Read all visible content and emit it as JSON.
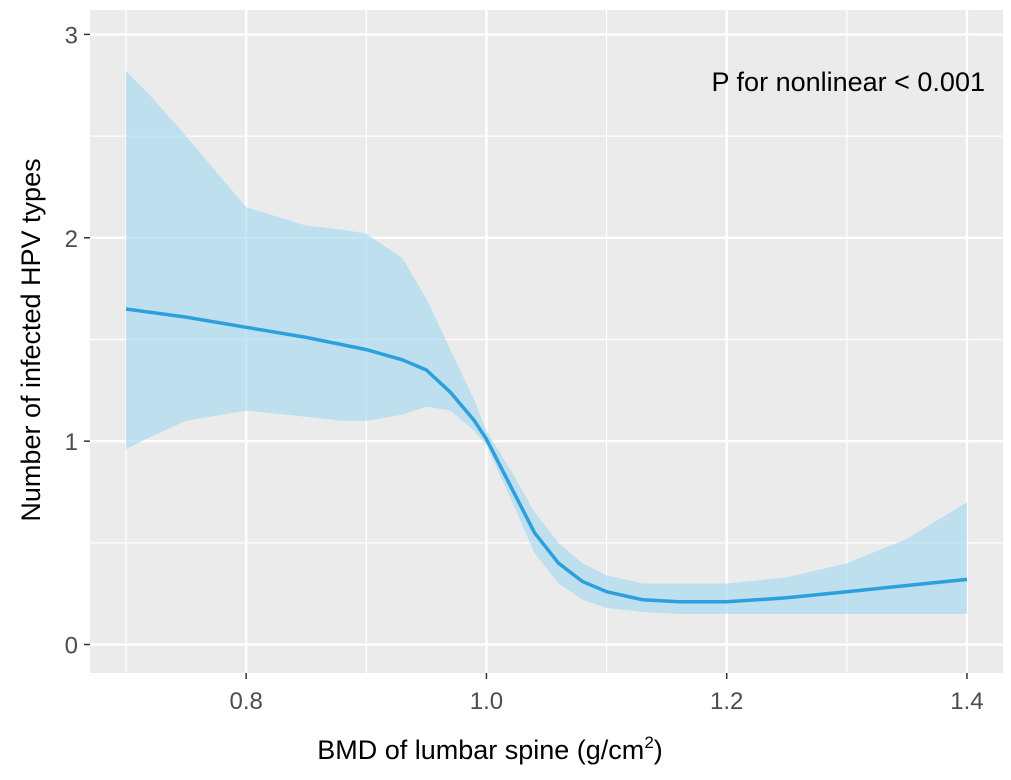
{
  "chart_data": {
    "type": "line",
    "xlabel": "BMD of lumbar spine (g/cm",
    "xlabel_superscript": "2",
    "xlabel_suffix": ")",
    "ylabel": "Number of infected HPV types",
    "annotation": "P for nonlinear < 0.001",
    "xlim": [
      0.67,
      1.43
    ],
    "ylim": [
      -0.14,
      3.12
    ],
    "x_ticks": [
      0.8,
      1.0,
      1.2,
      1.4
    ],
    "x_tick_labels": [
      "0.8",
      "1.0",
      "1.2",
      "1.4"
    ],
    "y_ticks": [
      0,
      1,
      2,
      3
    ],
    "y_tick_labels": [
      "0",
      "1",
      "2",
      "3"
    ],
    "grid": true,
    "series": [
      {
        "x": [
          0.7,
          0.75,
          0.8,
          0.85,
          0.9,
          0.93,
          0.95,
          0.97,
          0.99,
          1.0,
          1.02,
          1.04,
          1.06,
          1.08,
          1.1,
          1.13,
          1.16,
          1.2,
          1.25,
          1.3,
          1.35,
          1.4
        ],
        "y": [
          1.65,
          1.61,
          1.56,
          1.51,
          1.45,
          1.4,
          1.35,
          1.24,
          1.1,
          1.01,
          0.78,
          0.55,
          0.4,
          0.31,
          0.26,
          0.22,
          0.21,
          0.21,
          0.23,
          0.26,
          0.29,
          0.32
        ]
      }
    ],
    "confidence_band": {
      "x": [
        0.7,
        0.72,
        0.75,
        0.8,
        0.85,
        0.88,
        0.9,
        0.93,
        0.95,
        0.97,
        0.99,
        1.0,
        1.02,
        1.04,
        1.06,
        1.08,
        1.1,
        1.13,
        1.16,
        1.2,
        1.25,
        1.3,
        1.35,
        1.4
      ],
      "lower": [
        0.96,
        1.02,
        1.1,
        1.15,
        1.12,
        1.1,
        1.1,
        1.13,
        1.17,
        1.15,
        1.05,
        0.98,
        0.72,
        0.45,
        0.3,
        0.22,
        0.18,
        0.16,
        0.15,
        0.15,
        0.15,
        0.15,
        0.15,
        0.15
      ],
      "upper": [
        2.82,
        2.7,
        2.5,
        2.15,
        2.06,
        2.04,
        2.02,
        1.9,
        1.7,
        1.45,
        1.2,
        1.05,
        0.86,
        0.65,
        0.5,
        0.4,
        0.34,
        0.3,
        0.3,
        0.3,
        0.33,
        0.4,
        0.52,
        0.7
      ]
    },
    "colors": {
      "line": "#2e9fdd",
      "band": "#a6d8f0",
      "panel": "#ebebeb",
      "grid": "#ffffff"
    }
  }
}
